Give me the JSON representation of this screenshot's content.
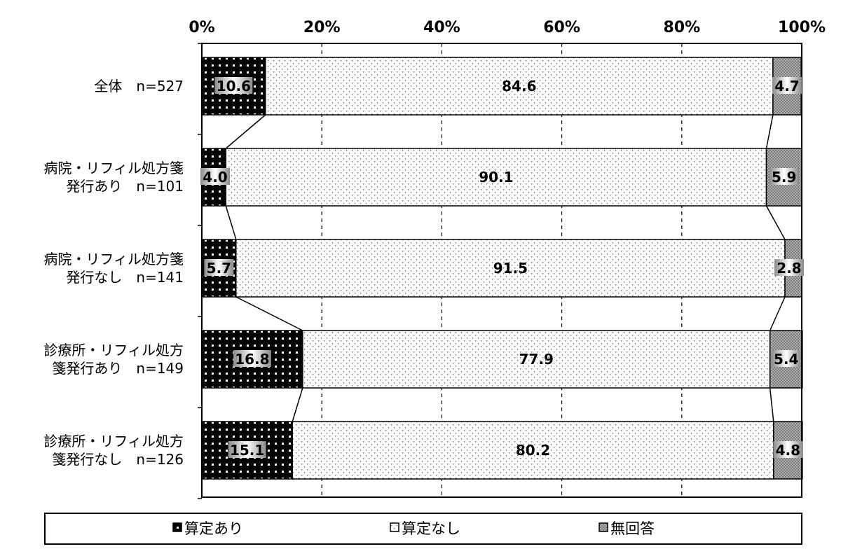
{
  "chart_data": {
    "type": "bar",
    "orientation": "horizontal",
    "stacked": "percent",
    "x_ticks": [
      "0%",
      "20%",
      "40%",
      "60%",
      "80%",
      "100%"
    ],
    "xlim": [
      0,
      100
    ],
    "categories": [
      [
        "全体　n=527"
      ],
      [
        "病院・リフィル処方箋",
        "発行あり　n=101"
      ],
      [
        "病院・リフィル処方箋",
        "発行なし　n=141"
      ],
      [
        "診療所・リフィル処方",
        "箋発行あり　n=149"
      ],
      [
        "診療所・リフィル処方",
        "箋発行なし　n=126"
      ]
    ],
    "series": [
      {
        "name": "算定あり",
        "values": [
          10.6,
          4.0,
          5.7,
          16.8,
          15.1
        ],
        "labels": [
          "10.6",
          "4.0",
          "5.7",
          "16.8",
          "15.1"
        ],
        "color": "#000000"
      },
      {
        "name": "算定なし",
        "values": [
          84.6,
          90.1,
          91.5,
          77.9,
          80.2
        ],
        "labels": [
          "84.6",
          "90.1",
          "91.5",
          "77.9",
          "80.2"
        ],
        "color": "#ffffff"
      },
      {
        "name": "無回答",
        "values": [
          4.7,
          5.9,
          2.8,
          5.4,
          4.8
        ],
        "labels": [
          "4.7",
          "5.9",
          "2.8",
          "5.4",
          "4.8"
        ],
        "color": "#9a9a9a"
      }
    ],
    "grid": "vertical-dashed",
    "legend": "bottom"
  }
}
